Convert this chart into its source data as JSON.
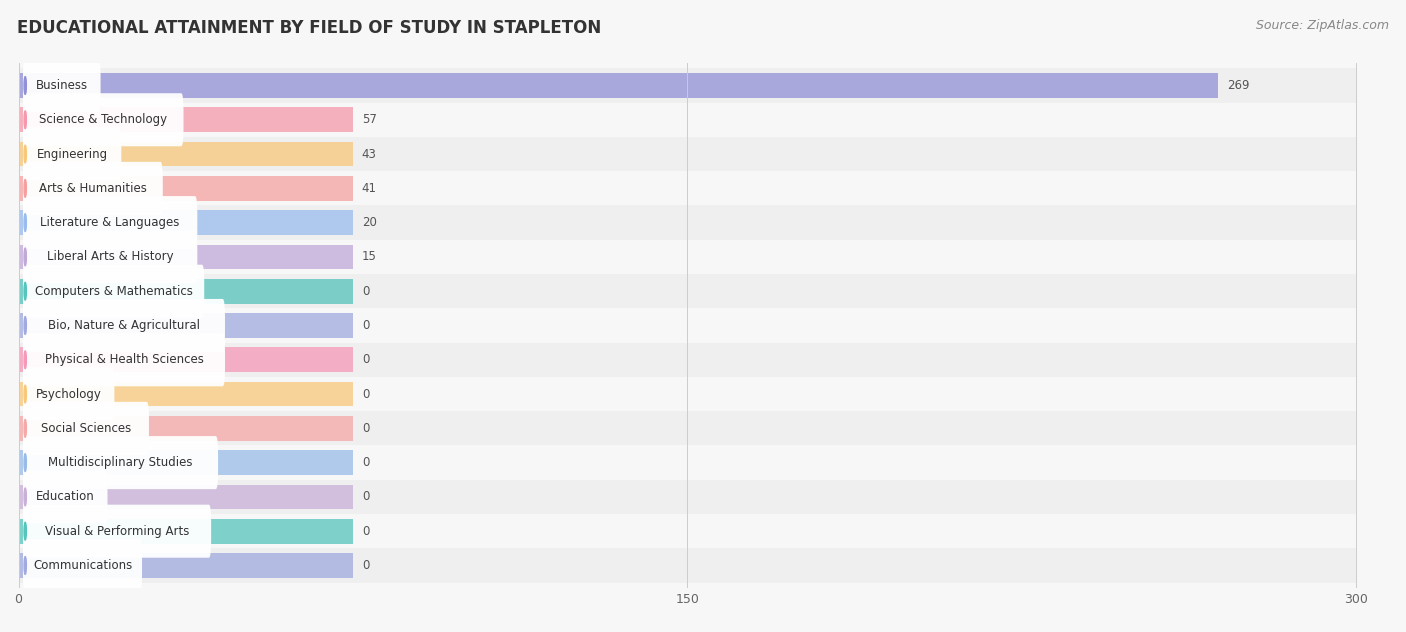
{
  "title": "EDUCATIONAL ATTAINMENT BY FIELD OF STUDY IN STAPLETON",
  "source": "Source: ZipAtlas.com",
  "categories": [
    "Business",
    "Science & Technology",
    "Engineering",
    "Arts & Humanities",
    "Literature & Languages",
    "Liberal Arts & History",
    "Computers & Mathematics",
    "Bio, Nature & Agricultural",
    "Physical & Health Sciences",
    "Psychology",
    "Social Sciences",
    "Multidisciplinary Studies",
    "Education",
    "Visual & Performing Arts",
    "Communications"
  ],
  "values": [
    269,
    57,
    43,
    41,
    20,
    15,
    0,
    0,
    0,
    0,
    0,
    0,
    0,
    0,
    0
  ],
  "bar_colors": [
    "#9090d8",
    "#f599aa",
    "#f8c87a",
    "#f5a0a0",
    "#99bbee",
    "#c0a8d8",
    "#55c4bc",
    "#a0aae0",
    "#f599b8",
    "#f8c87a",
    "#f5a8a8",
    "#99bbe8",
    "#c8b0d8",
    "#55c4bc",
    "#a0aae0"
  ],
  "min_bar_width": 75,
  "xlim_max": 300,
  "xticks": [
    0,
    150,
    300
  ],
  "bg_color": "#f7f7f7",
  "row_bg_color": "#efefef",
  "label_box_color": "#ffffff",
  "title_fontsize": 12,
  "source_fontsize": 9,
  "bar_height": 0.72,
  "label_fontsize": 8.5,
  "value_fontsize": 8.5
}
